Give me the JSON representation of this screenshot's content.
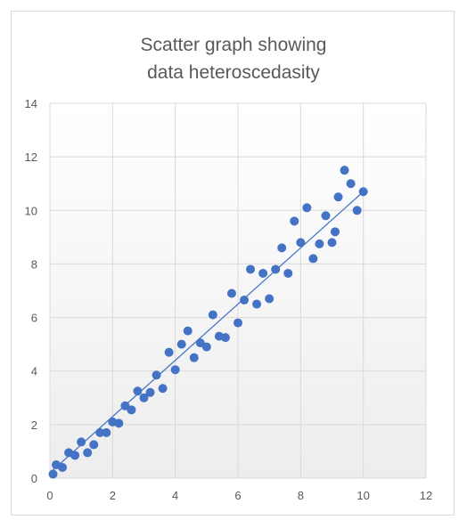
{
  "chart_data": {
    "type": "scatter",
    "title_lines": [
      "Scatter graph showing",
      "data heteroscedasity"
    ],
    "xlabel": "",
    "ylabel": "",
    "xlim": [
      0,
      12
    ],
    "ylim": [
      0,
      14
    ],
    "x_ticks": [
      0,
      2,
      4,
      6,
      8,
      10,
      12
    ],
    "y_ticks": [
      0,
      2,
      4,
      6,
      8,
      10,
      12,
      14
    ],
    "grid": true,
    "legend": "none",
    "marker_color": "#4472c4",
    "trendline": {
      "type": "linear",
      "from": [
        0,
        0.2
      ],
      "to": [
        10,
        10.7
      ],
      "color": "#4472c4"
    },
    "points": [
      {
        "x": 0.1,
        "y": 0.15
      },
      {
        "x": 0.2,
        "y": 0.5
      },
      {
        "x": 0.4,
        "y": 0.4
      },
      {
        "x": 0.6,
        "y": 0.95
      },
      {
        "x": 0.8,
        "y": 0.85
      },
      {
        "x": 1.0,
        "y": 1.35
      },
      {
        "x": 1.2,
        "y": 0.95
      },
      {
        "x": 1.4,
        "y": 1.25
      },
      {
        "x": 1.6,
        "y": 1.7
      },
      {
        "x": 1.8,
        "y": 1.7
      },
      {
        "x": 2.0,
        "y": 2.1
      },
      {
        "x": 2.2,
        "y": 2.05
      },
      {
        "x": 2.4,
        "y": 2.7
      },
      {
        "x": 2.6,
        "y": 2.55
      },
      {
        "x": 2.8,
        "y": 3.25
      },
      {
        "x": 3.0,
        "y": 3.0
      },
      {
        "x": 3.2,
        "y": 3.2
      },
      {
        "x": 3.4,
        "y": 3.85
      },
      {
        "x": 3.6,
        "y": 3.35
      },
      {
        "x": 3.8,
        "y": 4.7
      },
      {
        "x": 4.0,
        "y": 4.05
      },
      {
        "x": 4.2,
        "y": 5.0
      },
      {
        "x": 4.4,
        "y": 5.5
      },
      {
        "x": 4.6,
        "y": 4.5
      },
      {
        "x": 4.8,
        "y": 5.05
      },
      {
        "x": 5.0,
        "y": 4.9
      },
      {
        "x": 5.2,
        "y": 6.1
      },
      {
        "x": 5.4,
        "y": 5.3
      },
      {
        "x": 5.6,
        "y": 5.25
      },
      {
        "x": 5.8,
        "y": 6.9
      },
      {
        "x": 6.0,
        "y": 5.8
      },
      {
        "x": 6.2,
        "y": 6.65
      },
      {
        "x": 6.4,
        "y": 7.8
      },
      {
        "x": 6.6,
        "y": 6.5
      },
      {
        "x": 6.8,
        "y": 7.65
      },
      {
        "x": 7.0,
        "y": 6.7
      },
      {
        "x": 7.2,
        "y": 7.8
      },
      {
        "x": 7.4,
        "y": 8.6
      },
      {
        "x": 7.6,
        "y": 7.65
      },
      {
        "x": 7.8,
        "y": 9.6
      },
      {
        "x": 8.0,
        "y": 8.8
      },
      {
        "x": 8.2,
        "y": 10.1
      },
      {
        "x": 8.4,
        "y": 8.2
      },
      {
        "x": 8.6,
        "y": 8.75
      },
      {
        "x": 8.8,
        "y": 9.8
      },
      {
        "x": 9.0,
        "y": 8.8
      },
      {
        "x": 9.1,
        "y": 9.2
      },
      {
        "x": 9.2,
        "y": 10.5
      },
      {
        "x": 9.4,
        "y": 11.5
      },
      {
        "x": 9.6,
        "y": 11.0
      },
      {
        "x": 9.8,
        "y": 10.0
      },
      {
        "x": 10.0,
        "y": 10.7
      }
    ]
  }
}
